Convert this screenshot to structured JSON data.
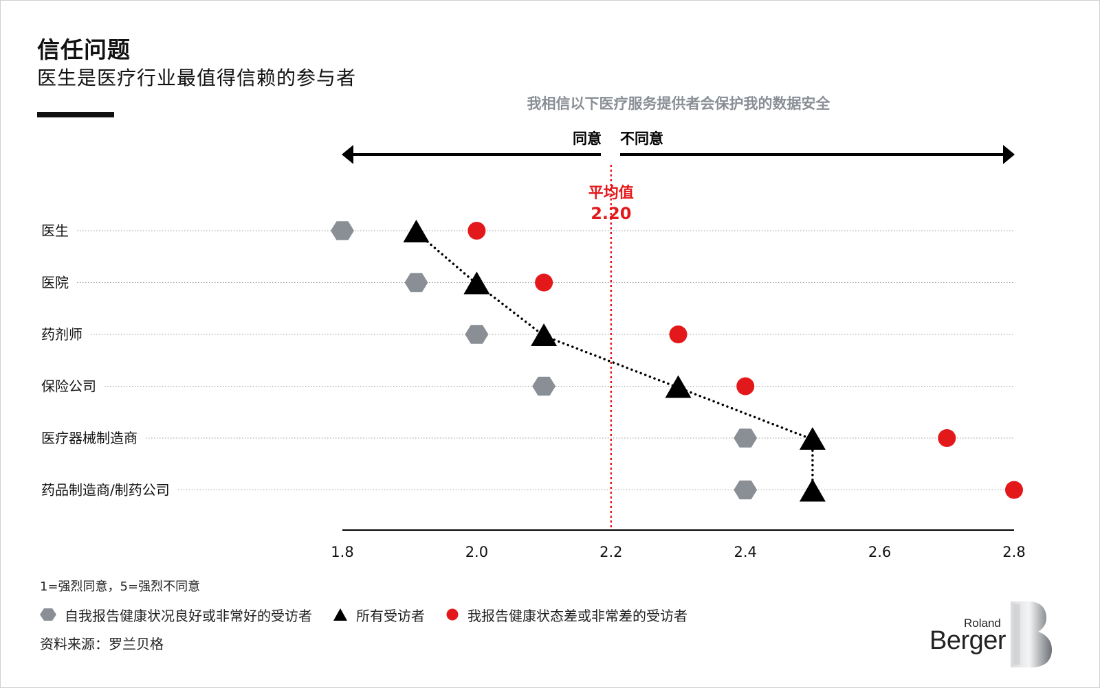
{
  "header": {
    "title": "信任问题",
    "subtitle": "医生是医疗行业最值得信赖的参与者"
  },
  "colors": {
    "good_health": "#8a8f96",
    "all": "#000000",
    "poor_health": "#e3181b",
    "average_line": "#e3181b",
    "heading_gray": "#8a8f96"
  },
  "chart_data": {
    "type": "scatter",
    "title": "我相信以下医疗服务提供者会保护我的数据安全",
    "direction_labels": {
      "agree": "同意",
      "disagree": "不同意"
    },
    "average": {
      "label": "平均值",
      "value": 2.2,
      "display": "2.20"
    },
    "x": {
      "min": 1.8,
      "max": 2.8,
      "ticks": [
        "1.8",
        "2.0",
        "2.2",
        "2.4",
        "2.6",
        "2.8"
      ]
    },
    "categories": [
      "医生",
      "医院",
      "药剂师",
      "保险公司",
      "医疗器械制造商",
      "药品制造商/制药公司"
    ],
    "series": [
      {
        "name": "自我报告健康状况良好或非常好的受访者",
        "marker": "hexagon-icon",
        "values": [
          1.8,
          1.91,
          2.0,
          2.1,
          2.4,
          2.4
        ]
      },
      {
        "name": "所有受访者",
        "marker": "triangle-icon",
        "values": [
          1.91,
          2.0,
          2.1,
          2.3,
          2.5,
          2.5
        ]
      },
      {
        "name": "我报告健康状态差或非常差的受访者",
        "marker": "circle-icon",
        "values": [
          2.0,
          2.1,
          2.3,
          2.4,
          2.7,
          2.8
        ]
      }
    ],
    "scale_note": "1=强烈同意，5=强烈不同意",
    "grid": false,
    "legend_position": "bottom-left"
  },
  "footer": {
    "scale_note": "1=强烈同意，5=强烈不同意",
    "source": "资料来源：罗兰贝格"
  },
  "logo": {
    "small_word": "Roland",
    "big_word": "Berger"
  }
}
